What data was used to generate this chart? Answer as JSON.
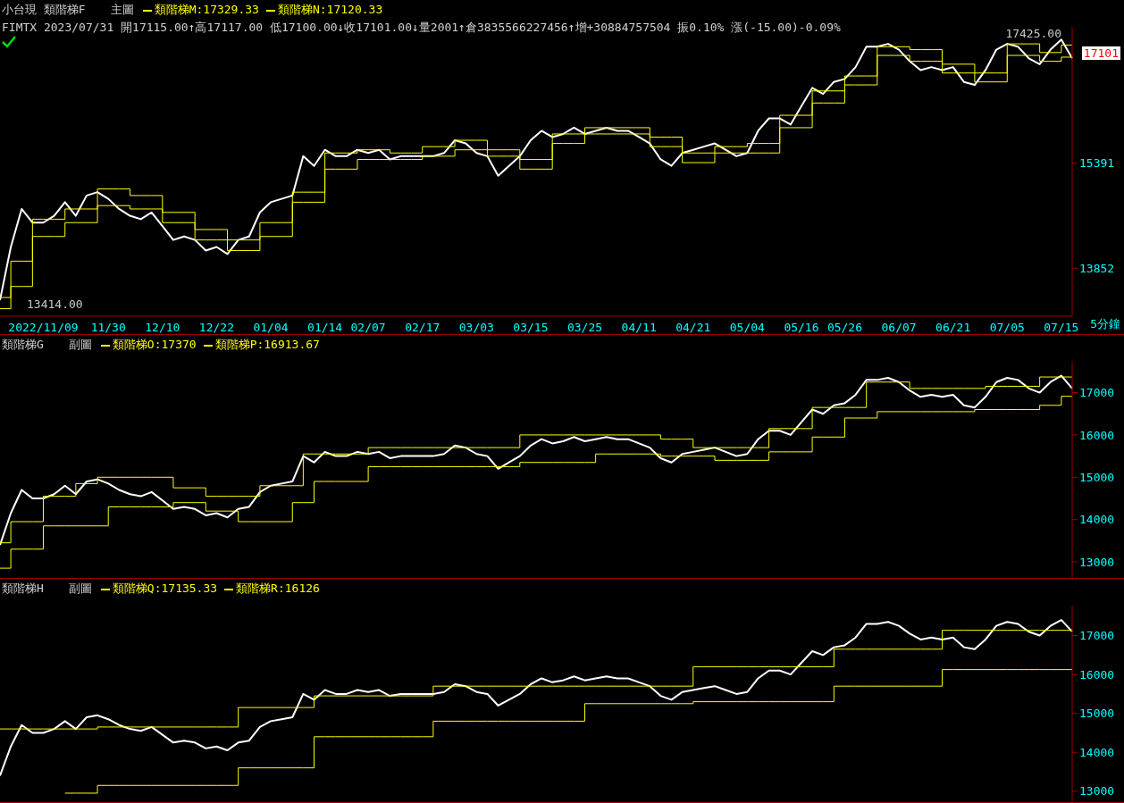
{
  "chart_data": [
    {
      "type": "line",
      "title": "小台現 類階梯F",
      "legend_title": "主圖",
      "subtitle": "FIMTX 2023/07/31 開17115.00↑高17117.00 低17100.00↓收17101.00↓量2001↑倉3835566227456↑增+30884757504 振0.10% 漲(-15.00)-0.09%",
      "xlabel": "5分鐘",
      "legend": "top left",
      "log": true,
      "ylim": [
        13200,
        17650
      ],
      "yticks": [
        13852,
        15391
      ],
      "annotations": [
        "17425.00",
        "13414.00",
        "17101"
      ],
      "categories": [
        null,
        null,
        null,
        null,
        "2022/11/09",
        null,
        null,
        null,
        null,
        null,
        "11/30",
        null,
        null,
        null,
        null,
        "12/10",
        null,
        null,
        null,
        null,
        "12/22",
        null,
        null,
        null,
        null,
        "01/04",
        null,
        null,
        null,
        null,
        "01/14",
        null,
        null,
        null,
        "02/07",
        null,
        null,
        null,
        null,
        "02/17",
        null,
        null,
        null,
        null,
        "03/03",
        null,
        null,
        null,
        null,
        "03/15",
        null,
        null,
        null,
        null,
        "03/25",
        null,
        null,
        null,
        null,
        "04/11",
        null,
        null,
        null,
        null,
        "04/21",
        null,
        null,
        null,
        null,
        "05/04",
        null,
        null,
        null,
        null,
        "05/16",
        null,
        null,
        null,
        "05/26",
        null,
        null,
        null,
        null,
        "06/07",
        null,
        null,
        null,
        null,
        "06/21",
        null,
        null,
        null,
        null,
        "07/05",
        null,
        null,
        null,
        null,
        "07/15",
        null
      ],
      "series": [
        {
          "color": "#ffffff",
          "values": [
            13414,
            14150,
            14700,
            14500,
            14500,
            14600,
            14800,
            14600,
            14900,
            14950,
            14850,
            14700,
            14600,
            14550,
            14650,
            14450,
            14250,
            14300,
            14250,
            14100,
            14150,
            14050,
            14250,
            14300,
            14650,
            14800,
            14850,
            14900,
            15500,
            15350,
            15600,
            15500,
            15500,
            15600,
            15550,
            15600,
            15450,
            15500,
            15500,
            15500,
            15500,
            15550,
            15750,
            15700,
            15550,
            15500,
            15200,
            15350,
            15500,
            15750,
            15900,
            15800,
            15850,
            15950,
            15850,
            15900,
            15950,
            15900,
            15900,
            15800,
            15700,
            15450,
            15350,
            15550,
            15600,
            15650,
            15700,
            15600,
            15500,
            15550,
            15900,
            16100,
            16100,
            16000,
            16300,
            16600,
            16500,
            16700,
            16750,
            16950,
            17300,
            17300,
            17350,
            17250,
            17050,
            16900,
            16950,
            16900,
            16950,
            16700,
            16650,
            16900,
            17250,
            17350,
            17300,
            17100,
            17000,
            17250,
            17425,
            17101
          ]
        },
        {
          "type": "step",
          "name": "類階梯M:17329.33",
          "color": "#ffff00",
          "values": [
            13450,
            13950,
            13950,
            14550,
            14550,
            14550,
            14700,
            14700,
            14700,
            15000,
            15000,
            15000,
            14900,
            14900,
            14900,
            14650,
            14650,
            14650,
            14400,
            14400,
            14400,
            14250,
            14250,
            14250,
            14500,
            14500,
            14500,
            14950,
            14950,
            14950,
            15550,
            15550,
            15550,
            15600,
            15600,
            15600,
            15550,
            15550,
            15550,
            15650,
            15650,
            15650,
            15750,
            15750,
            15750,
            15600,
            15600,
            15600,
            15450,
            15450,
            15450,
            15850,
            15850,
            15850,
            15950,
            15950,
            15950,
            15950,
            15950,
            15950,
            15800,
            15800,
            15800,
            15550,
            15550,
            15550,
            15650,
            15650,
            15650,
            15700,
            15700,
            15700,
            16150,
            16150,
            16150,
            16550,
            16550,
            16550,
            16800,
            16800,
            16800,
            17300,
            17300,
            17300,
            17250,
            17250,
            17250,
            17000,
            17000,
            17000,
            16850,
            16850,
            16850,
            17350,
            17350,
            17350,
            17200,
            17200,
            17329.33,
            17329.33
          ]
        },
        {
          "type": "step",
          "name": "類階梯N:17120.33",
          "color": "#ffff00",
          "values": [
            13300,
            13600,
            13600,
            14300,
            14300,
            14300,
            14500,
            14500,
            14500,
            14750,
            14750,
            14750,
            14700,
            14700,
            14700,
            14500,
            14500,
            14500,
            14250,
            14250,
            14250,
            14100,
            14100,
            14100,
            14300,
            14300,
            14300,
            14800,
            14800,
            14800,
            15300,
            15300,
            15300,
            15450,
            15450,
            15450,
            15450,
            15450,
            15450,
            15500,
            15500,
            15500,
            15600,
            15600,
            15600,
            15500,
            15500,
            15500,
            15300,
            15300,
            15300,
            15700,
            15700,
            15700,
            15850,
            15850,
            15850,
            15850,
            15850,
            15850,
            15650,
            15650,
            15650,
            15400,
            15400,
            15400,
            15550,
            15550,
            15550,
            15550,
            15550,
            15550,
            15950,
            15950,
            15950,
            16350,
            16350,
            16350,
            16650,
            16650,
            16650,
            17150,
            17150,
            17150,
            17050,
            17050,
            17050,
            16850,
            16850,
            16850,
            16700,
            16700,
            16700,
            17150,
            17150,
            17150,
            17050,
            17050,
            17120.33,
            17120.33
          ]
        }
      ]
    },
    {
      "type": "line",
      "title": "類階梯G",
      "legend_title": "副圖",
      "legend": "top left",
      "tick_labels": "y",
      "ylim": [
        12620,
        17730
      ],
      "yticks": [
        13000,
        14000,
        15000,
        16000,
        17000
      ],
      "categories": [
        null,
        null,
        null,
        null,
        null,
        null,
        null,
        null,
        null,
        null,
        null,
        null,
        null,
        null,
        null,
        null,
        null,
        null,
        null,
        null,
        null,
        null,
        null,
        null,
        null,
        null,
        null,
        null,
        null,
        null,
        null,
        null,
        null,
        null,
        null,
        null,
        null,
        null,
        null,
        null,
        null,
        null,
        null,
        null,
        null,
        null,
        null,
        null,
        null,
        null,
        null,
        null,
        null,
        null,
        null,
        null,
        null,
        null,
        null,
        null,
        null,
        null,
        null,
        null,
        null,
        null,
        null,
        null,
        null,
        null,
        null,
        null,
        null,
        null,
        null,
        null,
        null,
        null,
        null,
        null,
        null,
        null,
        null,
        null,
        null,
        null,
        null,
        null,
        null,
        null,
        null,
        null,
        null,
        null,
        null,
        null,
        null,
        null,
        null,
        null
      ],
      "series": [
        {
          "color": "#ffffff",
          "values": [
            13400,
            14150,
            14700,
            14500,
            14500,
            14600,
            14800,
            14600,
            14900,
            14950,
            14850,
            14700,
            14600,
            14550,
            14650,
            14450,
            14250,
            14300,
            14250,
            14100,
            14150,
            14050,
            14250,
            14300,
            14650,
            14800,
            14850,
            14900,
            15500,
            15350,
            15600,
            15500,
            15500,
            15600,
            15550,
            15600,
            15450,
            15500,
            15500,
            15500,
            15500,
            15550,
            15750,
            15700,
            15550,
            15500,
            15200,
            15350,
            15500,
            15750,
            15900,
            15800,
            15850,
            15950,
            15850,
            15900,
            15950,
            15900,
            15900,
            15800,
            15700,
            15450,
            15350,
            15550,
            15600,
            15650,
            15700,
            15600,
            15500,
            15550,
            15900,
            16100,
            16100,
            16000,
            16300,
            16600,
            16500,
            16700,
            16750,
            16950,
            17300,
            17300,
            17350,
            17250,
            17050,
            16900,
            16950,
            16900,
            16950,
            16700,
            16650,
            16900,
            17250,
            17350,
            17300,
            17100,
            17000,
            17250,
            17400,
            17100
          ]
        },
        {
          "type": "step",
          "name": "類階梯O:17370",
          "color": "#ffff00",
          "values": [
            13450,
            13950,
            13950,
            13950,
            14550,
            14550,
            14550,
            14850,
            14850,
            15000,
            15000,
            15000,
            15000,
            15000,
            15000,
            15000,
            14750,
            14750,
            14750,
            14550,
            14550,
            14550,
            14550,
            14550,
            14800,
            14800,
            14800,
            14800,
            15550,
            15550,
            15550,
            15550,
            15550,
            15550,
            15700,
            15700,
            15700,
            15700,
            15700,
            15700,
            15700,
            15700,
            15700,
            15700,
            15700,
            15700,
            15700,
            15700,
            16000,
            16000,
            16000,
            16000,
            16000,
            16000,
            16000,
            16000,
            16000,
            16000,
            16000,
            16000,
            16000,
            15900,
            15900,
            15900,
            15700,
            15700,
            15700,
            15700,
            15700,
            15700,
            15700,
            16150,
            16150,
            16150,
            16150,
            16650,
            16650,
            16650,
            16650,
            16650,
            17250,
            17250,
            17250,
            17250,
            17100,
            17100,
            17100,
            17100,
            17100,
            17100,
            17100,
            17150,
            17150,
            17150,
            17150,
            17150,
            17370,
            17370,
            17370,
            17370
          ]
        },
        {
          "type": "step",
          "name": "類階梯P:16913.67",
          "color": "#ffff00",
          "values": [
            12850,
            13300,
            13300,
            13300,
            13850,
            13850,
            13850,
            13850,
            13850,
            13850,
            14300,
            14300,
            14300,
            14300,
            14300,
            14300,
            14400,
            14400,
            14400,
            14200,
            14200,
            14200,
            13950,
            13950,
            13950,
            13950,
            13950,
            14400,
            14400,
            14900,
            14900,
            14900,
            14900,
            14900,
            15250,
            15250,
            15250,
            15250,
            15250,
            15250,
            15250,
            15250,
            15250,
            15250,
            15250,
            15250,
            15250,
            15250,
            15350,
            15350,
            15350,
            15350,
            15350,
            15350,
            15350,
            15550,
            15550,
            15550,
            15550,
            15550,
            15550,
            15500,
            15500,
            15500,
            15500,
            15500,
            15400,
            15400,
            15400,
            15400,
            15400,
            15600,
            15600,
            15600,
            15600,
            15950,
            15950,
            15950,
            16400,
            16400,
            16400,
            16550,
            16550,
            16550,
            16550,
            16550,
            16550,
            16550,
            16550,
            16550,
            16600,
            16600,
            16600,
            16600,
            16600,
            16600,
            16700,
            16700,
            16913.67,
            16913.67
          ]
        }
      ]
    },
    {
      "type": "line",
      "title": "類階梯H",
      "legend_title": "副圖",
      "legend": "top left",
      "tick_labels": "y",
      "ylim": [
        12720,
        17770
      ],
      "yticks": [
        13000,
        14000,
        15000,
        16000,
        17000
      ],
      "categories": [
        null,
        null,
        null,
        null,
        null,
        null,
        null,
        null,
        null,
        null,
        null,
        null,
        null,
        null,
        null,
        null,
        null,
        null,
        null,
        null,
        null,
        null,
        null,
        null,
        null,
        null,
        null,
        null,
        null,
        null,
        null,
        null,
        null,
        null,
        null,
        null,
        null,
        null,
        null,
        null,
        null,
        null,
        null,
        null,
        null,
        null,
        null,
        null,
        null,
        null,
        null,
        null,
        null,
        null,
        null,
        null,
        null,
        null,
        null,
        null,
        null,
        null,
        null,
        null,
        null,
        null,
        null,
        null,
        null,
        null,
        null,
        null,
        null,
        null,
        null,
        null,
        null,
        null,
        null,
        null,
        null,
        null,
        null,
        null,
        null,
        null,
        null,
        null,
        null,
        null,
        null,
        null,
        null,
        null,
        null,
        null,
        null,
        null,
        null,
        null
      ],
      "series": [
        {
          "color": "#ffffff",
          "values": [
            13400,
            14150,
            14700,
            14500,
            14500,
            14600,
            14800,
            14600,
            14900,
            14950,
            14850,
            14700,
            14600,
            14550,
            14650,
            14450,
            14250,
            14300,
            14250,
            14100,
            14150,
            14050,
            14250,
            14300,
            14650,
            14800,
            14850,
            14900,
            15500,
            15350,
            15600,
            15500,
            15500,
            15600,
            15550,
            15600,
            15450,
            15500,
            15500,
            15500,
            15500,
            15550,
            15750,
            15700,
            15550,
            15500,
            15200,
            15350,
            15500,
            15750,
            15900,
            15800,
            15850,
            15950,
            15850,
            15900,
            15950,
            15900,
            15900,
            15800,
            15700,
            15450,
            15350,
            15550,
            15600,
            15650,
            15700,
            15600,
            15500,
            15550,
            15900,
            16100,
            16100,
            16000,
            16300,
            16600,
            16500,
            16700,
            16750,
            16950,
            17300,
            17300,
            17350,
            17250,
            17050,
            16900,
            16950,
            16900,
            16950,
            16700,
            16650,
            16900,
            17250,
            17350,
            17300,
            17100,
            17000,
            17250,
            17400,
            17100
          ]
        },
        {
          "type": "step",
          "name": "類階梯Q:17135.33",
          "color": "#ffff00",
          "values": [
            14600,
            14600,
            14600,
            14600,
            14600,
            14600,
            14600,
            14600,
            14600,
            14650,
            14650,
            14650,
            14650,
            14650,
            14650,
            14650,
            14650,
            14650,
            14650,
            14650,
            14650,
            14650,
            15150,
            15150,
            15150,
            15150,
            15150,
            15150,
            15150,
            15450,
            15450,
            15450,
            15450,
            15450,
            15450,
            15450,
            15450,
            15450,
            15450,
            15450,
            15700,
            15700,
            15700,
            15700,
            15700,
            15700,
            15700,
            15700,
            15700,
            15700,
            15700,
            15700,
            15700,
            15700,
            15700,
            15700,
            15700,
            15700,
            15700,
            15700,
            15700,
            15700,
            15700,
            15700,
            16200,
            16200,
            16200,
            16200,
            16200,
            16200,
            16200,
            16200,
            16200,
            16200,
            16200,
            16200,
            16200,
            16650,
            16650,
            16650,
            16650,
            16650,
            16650,
            16650,
            16650,
            16650,
            16650,
            17135.33,
            17135.33,
            17135.33,
            17135.33,
            17135.33,
            17135.33,
            17135.33,
            17135.33,
            17135.33,
            17135.33,
            17135.33,
            17135.33,
            17135.33
          ]
        },
        {
          "type": "step",
          "name": "類階梯R:16126",
          "color": "#ffff00",
          "values": [
            null,
            null,
            null,
            null,
            null,
            null,
            12950,
            12950,
            12950,
            13150,
            13150,
            13150,
            13150,
            13150,
            13150,
            13150,
            13150,
            13150,
            13150,
            13150,
            13150,
            13150,
            13600,
            13600,
            13600,
            13600,
            13600,
            13600,
            13600,
            14400,
            14400,
            14400,
            14400,
            14400,
            14400,
            14400,
            14400,
            14400,
            14400,
            14400,
            14800,
            14800,
            14800,
            14800,
            14800,
            14800,
            14800,
            14800,
            14800,
            14800,
            14800,
            14800,
            14800,
            14800,
            15250,
            15250,
            15250,
            15250,
            15250,
            15250,
            15250,
            15250,
            15250,
            15250,
            15300,
            15300,
            15300,
            15300,
            15300,
            15300,
            15300,
            15300,
            15300,
            15300,
            15300,
            15300,
            15300,
            15700,
            15700,
            15700,
            15700,
            15700,
            15700,
            15700,
            15700,
            15700,
            15700,
            16126,
            16126,
            16126,
            16126,
            16126,
            16126,
            16126,
            16126,
            16126,
            16126,
            16126,
            16126,
            16126
          ]
        }
      ]
    }
  ]
}
